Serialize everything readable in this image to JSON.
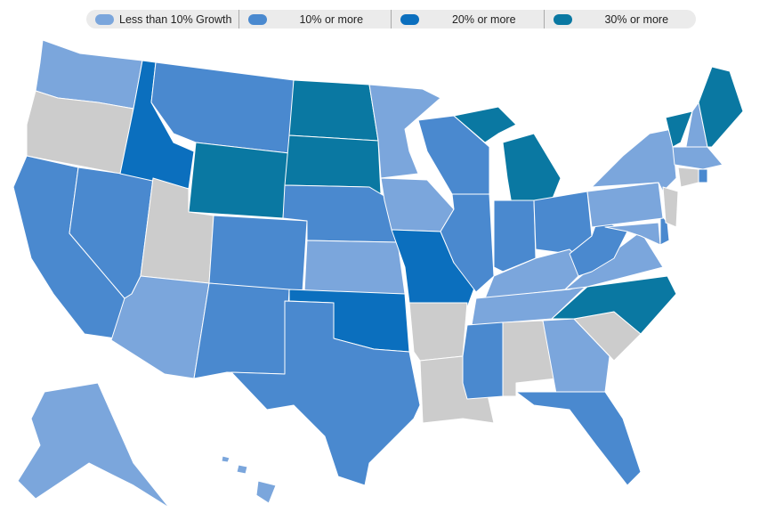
{
  "legend": {
    "items": [
      {
        "key": "light",
        "label": "Less than 10% Growth",
        "color": "#7ba6dc"
      },
      {
        "key": "mid",
        "label": "10% or more",
        "color": "#4a89cf"
      },
      {
        "key": "high",
        "label": "20% or more",
        "color": "#0b6fbe"
      },
      {
        "key": "top",
        "label": "30% or more",
        "color": "#0a78a2"
      }
    ],
    "no_data_color": "#cccccc"
  },
  "states": {
    "WA": "light",
    "OR": "none",
    "CA": "mid",
    "NV": "mid",
    "ID": "high",
    "MT": "mid",
    "WY": "top",
    "UT": "none",
    "AZ": "light",
    "CO": "mid",
    "NM": "mid",
    "ND": "top",
    "SD": "top",
    "NE": "mid",
    "KS": "light",
    "OK": "high",
    "TX": "mid",
    "MN": "light",
    "IA": "light",
    "MO": "high",
    "AR": "none",
    "LA": "none",
    "WI": "mid",
    "IL": "mid",
    "MI": "top",
    "IN": "mid",
    "OH": "mid",
    "KY": "light",
    "TN": "light",
    "MS": "mid",
    "AL": "none",
    "GA": "light",
    "FL": "mid",
    "SC": "none",
    "NC": "top",
    "VA": "light",
    "WV": "mid",
    "MD": "light",
    "DE": "mid",
    "PA": "light",
    "NY": "light",
    "NJ": "none",
    "VT": "top",
    "NH": "light",
    "ME": "top",
    "MA": "light",
    "CT": "none",
    "RI": "mid",
    "AK": "light",
    "HI": "light"
  }
}
